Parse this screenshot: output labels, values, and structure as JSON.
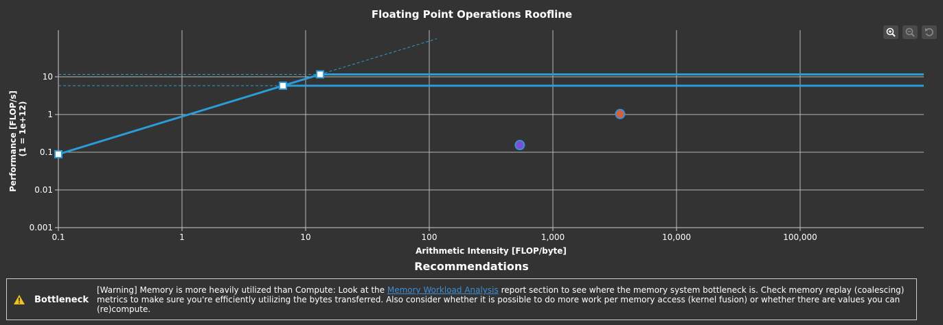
{
  "toolbar": {
    "zoom_in": "zoom-in-icon",
    "zoom_out": "zoom-out-icon",
    "reset": "reset-icon"
  },
  "chart_data": {
    "type": "scatter",
    "title": "Floating Point Operations Roofline",
    "xlabel": "Arithmetic Intensity [FLOP/byte]",
    "ylabel": "Performance [FLOP/s]",
    "ylabel2": "(1 = 1e+12)",
    "xscale": "log",
    "yscale": "log",
    "xlim": [
      0.1,
      1000000
    ],
    "ylim": [
      0.001,
      100
    ],
    "grid": true,
    "x_ticks": [
      "0.1",
      "1",
      "10",
      "100",
      "1,000",
      "10,000",
      "100,000"
    ],
    "x_tick_values": [
      0.1,
      1,
      10,
      100,
      1000,
      10000,
      100000
    ],
    "y_ticks": [
      "0.001",
      "0.01",
      "0.1",
      "1",
      "10"
    ],
    "y_tick_values": [
      0.001,
      0.01,
      0.1,
      1,
      10
    ],
    "rooflines": [
      {
        "bandwidth_slope": 0.885,
        "peak": 11.6,
        "ridge_x": 13.1,
        "color": "#2b9cd8"
      },
      {
        "bandwidth_slope": 0.885,
        "peak": 5.8,
        "ridge_x": 6.55,
        "color": "#2b9cd8"
      }
    ],
    "memory_start": {
      "x": 0.1,
      "y": 0.0885
    },
    "points": [
      {
        "x": 540,
        "y": 0.155,
        "color": "#7a4fd6",
        "edge": "#3b8fd6"
      },
      {
        "x": 3500,
        "y": 1.03,
        "color": "#d45f3a",
        "edge": "#3b8fd6"
      }
    ]
  },
  "recommendations": {
    "title": "Recommendations",
    "items": [
      {
        "icon": "warning-icon",
        "category": "Bottleneck",
        "text_before": "[Warning] Memory is more heavily utilized than Compute: Look at the ",
        "link": "Memory Workload Analysis",
        "text_after": " report section to see where the memory system bottleneck is. Check memory replay (coalescing) metrics to make sure you're efficiently utilizing the bytes transferred. Also consider whether it is possible to do more work per memory access (kernel fusion) or whether there are values you can (re)compute."
      }
    ]
  }
}
